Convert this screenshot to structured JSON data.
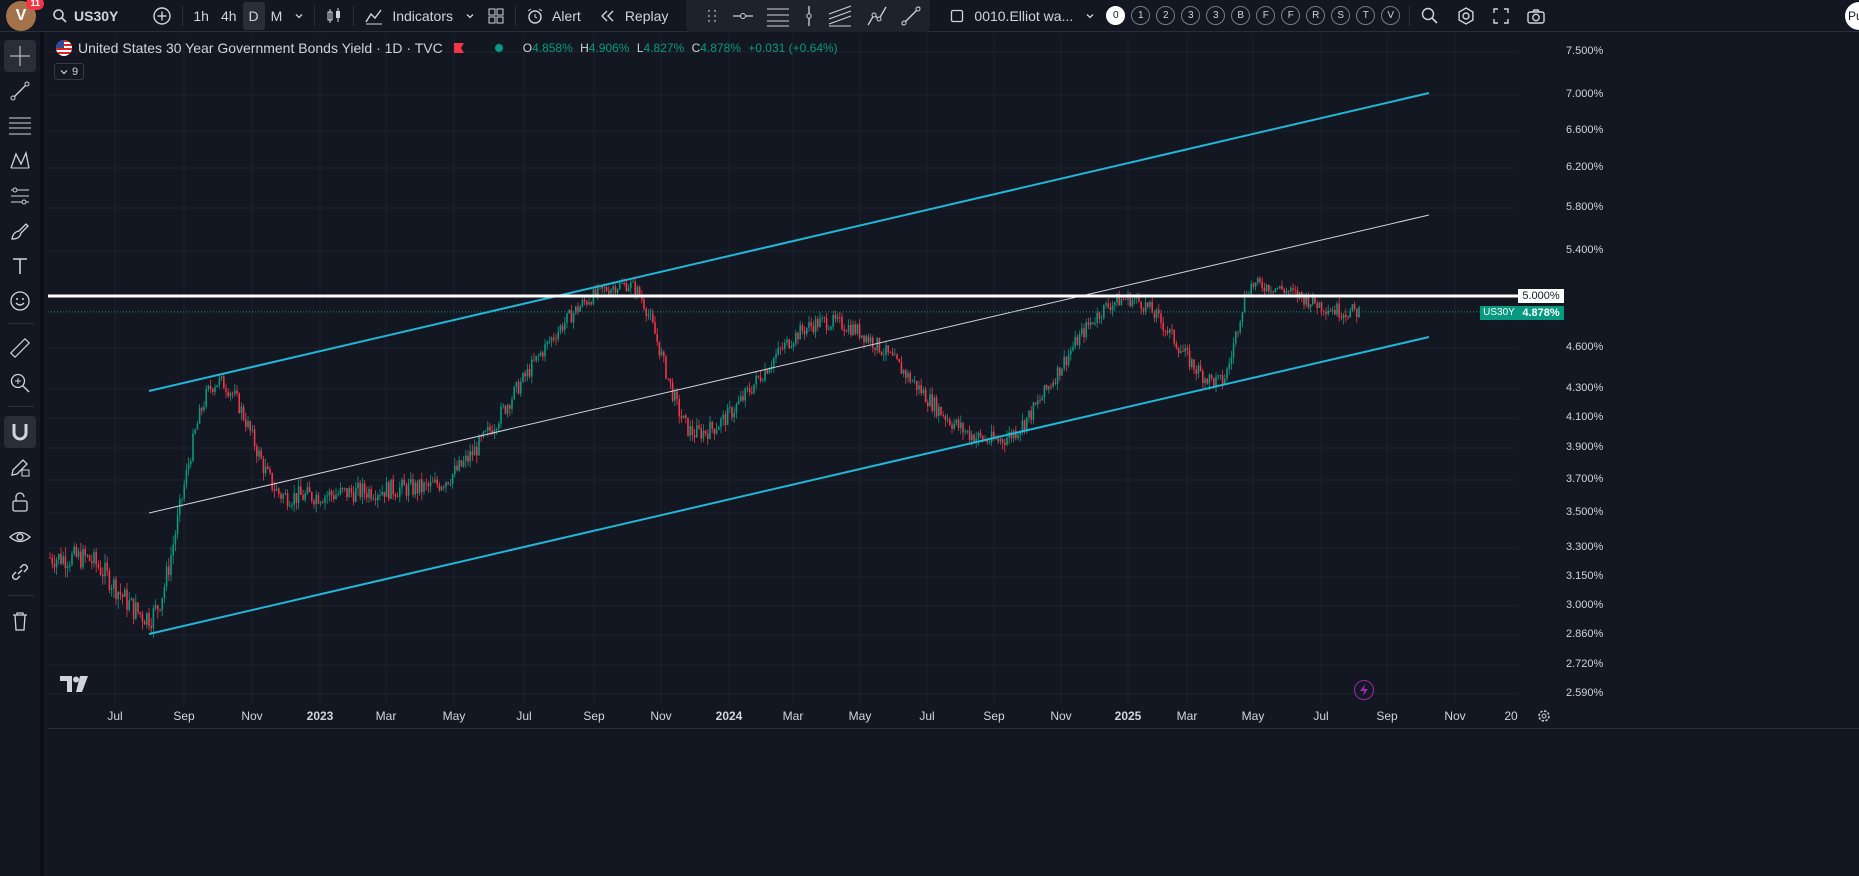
{
  "header": {
    "avatar_letter": "V",
    "notif_count": "11",
    "symbol": "US30Y",
    "timeframes": [
      "1h",
      "4h",
      "D",
      "M"
    ],
    "active_timeframe": "D",
    "indicators_label": "Indicators",
    "alert_label": "Alert",
    "replay_label": "Replay",
    "layout_name": "0010.Elliot wa...",
    "wave_buttons": [
      "0",
      "1",
      "2",
      "3",
      "3",
      "B",
      "F",
      "F",
      "R",
      "S",
      "T",
      "V"
    ],
    "publish_partial": "Pu"
  },
  "legend": {
    "title": "United States 30 Year Government Bonds Yield · 1D · TVC",
    "open_label": "O",
    "open": "4.858%",
    "high_label": "H",
    "high": "4.906%",
    "low_label": "L",
    "low": "4.827%",
    "close_label": "C",
    "close": "4.878%",
    "change": "+0.031 (+0.64%)",
    "indicator_count": "9"
  },
  "price_axis": {
    "labels": [
      "7.500%",
      "7.000%",
      "6.600%",
      "6.200%",
      "5.800%",
      "5.400%",
      "4.600%",
      "4.300%",
      "4.100%",
      "3.900%",
      "3.700%",
      "3.500%",
      "3.300%",
      "3.150%",
      "3.000%",
      "2.860%",
      "2.720%",
      "2.590%"
    ],
    "line_label": "5.000%",
    "symbol_tag": "US30Y",
    "last_price": "4.878%"
  },
  "time_axis": {
    "labels": [
      "Jul",
      "Sep",
      "Nov",
      "2023",
      "Mar",
      "May",
      "Jul",
      "Sep",
      "Nov",
      "2024",
      "Mar",
      "May",
      "Jul",
      "Sep",
      "Nov",
      "2025",
      "Mar",
      "May",
      "Jul",
      "Sep",
      "Nov",
      "20"
    ],
    "year_labels": [
      "2023",
      "2024",
      "2025"
    ]
  },
  "colors": {
    "background": "#131722",
    "up": "#089981",
    "down": "#f23645",
    "channel": "#22b6d8",
    "midline": "#d1d4dc",
    "level": "#ffffff"
  },
  "chart_data": {
    "type": "candlestick",
    "symbol": "US30Y",
    "interval": "1D",
    "resistance_level": 5.0,
    "last_price": 4.878,
    "x_range": [
      "2022-06",
      "2025-11"
    ],
    "ylim": [
      2.59,
      7.5
    ],
    "key_points": [
      {
        "date": "2022-06",
        "yield": 3.25
      },
      {
        "date": "2022-08",
        "yield": 2.95
      },
      {
        "date": "2022-10",
        "yield": 4.35
      },
      {
        "date": "2022-12",
        "yield": 3.6
      },
      {
        "date": "2023-04",
        "yield": 3.65
      },
      {
        "date": "2023-10",
        "yield": 5.1
      },
      {
        "date": "2023-12",
        "yield": 4.0
      },
      {
        "date": "2024-04",
        "yield": 4.8
      },
      {
        "date": "2024-09",
        "yield": 3.95
      },
      {
        "date": "2025-01",
        "yield": 4.98
      },
      {
        "date": "2025-04",
        "yield": 4.35
      },
      {
        "date": "2025-05",
        "yield": 5.1
      },
      {
        "date": "2025-08",
        "yield": 4.878
      }
    ]
  }
}
